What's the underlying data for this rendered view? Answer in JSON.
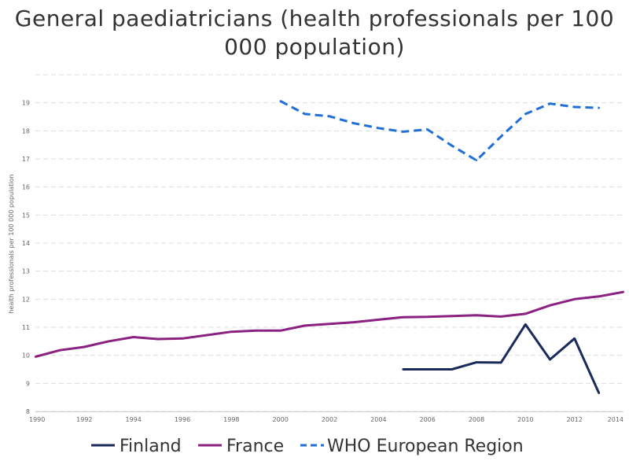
{
  "chart_data": {
    "type": "line",
    "title": "General paediatricians (health professionals per 100 000 population)",
    "ylabel": "health professionals per 100 000 population",
    "xlabel": "",
    "xlim": [
      1990,
      2014
    ],
    "ylim": [
      8,
      20
    ],
    "x_ticks": [
      "1990",
      "1992",
      "1994",
      "1996",
      "1998",
      "2000",
      "2002",
      "2004",
      "2006",
      "2008",
      "2010",
      "2012",
      "2014"
    ],
    "y_ticks": [
      "8",
      "9",
      "10",
      "11",
      "12",
      "13",
      "14",
      "15",
      "16",
      "17",
      "18",
      "19"
    ],
    "grid": true,
    "legend": "bottom",
    "series": [
      {
        "name": "Finland",
        "color": "#1a2a5a",
        "style": "solid",
        "points": [
          [
            2005,
            9.5
          ],
          [
            2006,
            9.5
          ],
          [
            2007,
            9.5
          ],
          [
            2008,
            9.75
          ],
          [
            2009,
            9.74
          ],
          [
            2010,
            11.1
          ],
          [
            2011,
            9.85
          ],
          [
            2012,
            10.6
          ],
          [
            2013,
            8.65
          ]
        ]
      },
      {
        "name": "France",
        "color": "#8b2181",
        "style": "solid",
        "points": [
          [
            1990,
            9.95
          ],
          [
            1991,
            10.18
          ],
          [
            1992,
            10.3
          ],
          [
            1993,
            10.5
          ],
          [
            1994,
            10.65
          ],
          [
            1995,
            10.58
          ],
          [
            1996,
            10.6
          ],
          [
            1997,
            10.72
          ],
          [
            1998,
            10.84
          ],
          [
            1999,
            10.88
          ],
          [
            2000,
            10.88
          ],
          [
            2001,
            11.06
          ],
          [
            2002,
            11.12
          ],
          [
            2003,
            11.18
          ],
          [
            2004,
            11.27
          ],
          [
            2005,
            11.36
          ],
          [
            2006,
            11.37
          ],
          [
            2007,
            11.4
          ],
          [
            2008,
            11.43
          ],
          [
            2009,
            11.38
          ],
          [
            2010,
            11.48
          ],
          [
            2011,
            11.78
          ],
          [
            2012,
            12.0
          ],
          [
            2013,
            12.1
          ],
          [
            2014,
            12.26
          ]
        ]
      },
      {
        "name": "WHO European Region",
        "color": "#1f6fd6",
        "style": "dashed",
        "points": [
          [
            2000,
            19.06
          ],
          [
            2001,
            18.6
          ],
          [
            2002,
            18.52
          ],
          [
            2003,
            18.27
          ],
          [
            2004,
            18.1
          ],
          [
            2005,
            17.97
          ],
          [
            2006,
            18.05
          ],
          [
            2007,
            17.47
          ],
          [
            2008,
            16.95
          ],
          [
            2009,
            17.8
          ],
          [
            2010,
            18.6
          ],
          [
            2011,
            18.97
          ],
          [
            2012,
            18.85
          ],
          [
            2013,
            18.82
          ]
        ]
      }
    ]
  }
}
